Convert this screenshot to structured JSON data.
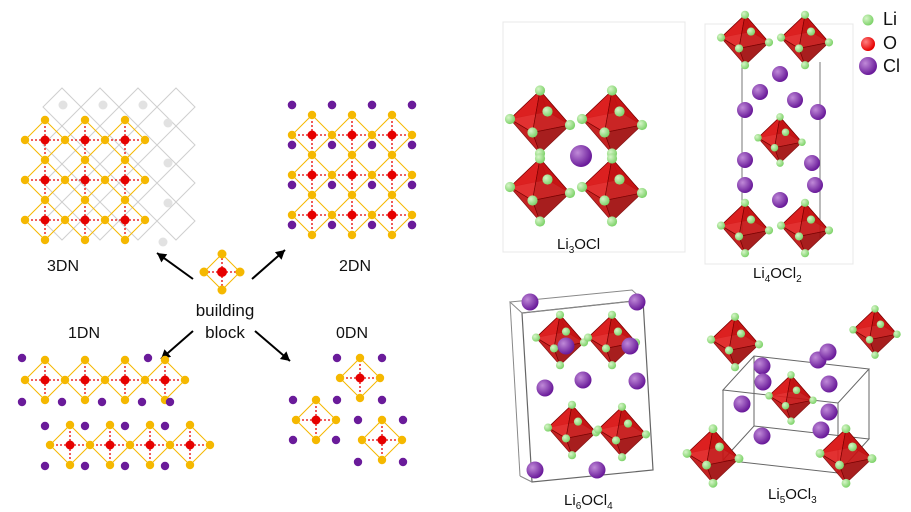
{
  "networks": {
    "n3": "3DN",
    "n2": "2DN",
    "n1": "1DN",
    "n0": "0DN"
  },
  "building_block": {
    "line1": "building",
    "line2": "block"
  },
  "structures": {
    "s1": {
      "a": "Li",
      "s1": "3",
      "b": "OCl",
      "s2": ""
    },
    "s2": {
      "a": "Li",
      "s1": "4",
      "b": "OCl",
      "s2": "2"
    },
    "s3": {
      "a": "Li",
      "s1": "6",
      "b": "OCl",
      "s2": "4"
    },
    "s4": {
      "a": "Li",
      "s1": "5",
      "b": "OCl",
      "s2": "3"
    }
  },
  "legend": {
    "li": "Li",
    "o": "O",
    "cl": "Cl"
  },
  "colors": {
    "li_yellow": "#f5b800",
    "o_red": "#e60000",
    "cl_purple": "#6a1b9a",
    "octahedron": "#cc1111",
    "li_green": "#7fd36b"
  }
}
